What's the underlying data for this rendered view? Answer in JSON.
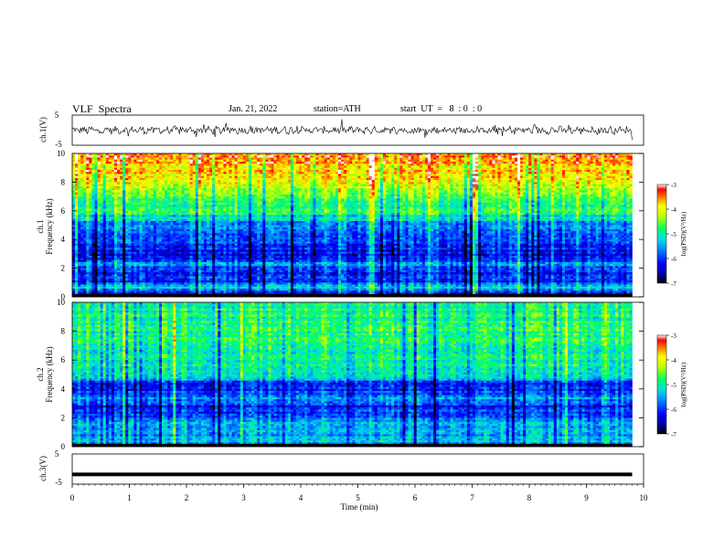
{
  "header": {
    "title": "VLF  Spectra",
    "date": "Jan. 21, 2022",
    "station": "station=ATH",
    "start_ut": "start  UT  =   8  : 0  : 0"
  },
  "chart_data": [
    {
      "type": "line",
      "name": "ch1-waveform",
      "ylabel": "ch.1(V)",
      "ylim": [
        -5,
        5
      ],
      "ytick_labels": [
        "5",
        "-5"
      ],
      "xlim": [
        0,
        10
      ],
      "color": "#000000",
      "level": 0
    },
    {
      "type": "heatmap",
      "name": "ch1-spectrogram",
      "ylabel": "ch.1\nFrequency (kHz)",
      "ylabel_lines": [
        "ch.1",
        "Frequency (kHz)"
      ],
      "ylim": [
        0,
        10
      ],
      "ytick_labels": [
        "0",
        "2",
        "4",
        "6",
        "8",
        "10"
      ],
      "xlim": [
        0,
        9.8
      ],
      "colorbar": {
        "label": "log(PSD)(V²/Hz)",
        "range": [
          -7,
          -3
        ],
        "tick_labels": [
          "-3",
          "-4",
          "-5",
          "-6",
          "-7"
        ]
      },
      "profile_kHz": [
        [
          0,
          -6.6
        ],
        [
          0.3,
          -6.2
        ],
        [
          0.7,
          -5.2
        ],
        [
          1.0,
          -6.0
        ],
        [
          1.5,
          -6.1
        ],
        [
          2.0,
          -5.9
        ],
        [
          2.3,
          -5.5
        ],
        [
          2.6,
          -6.2
        ],
        [
          3.5,
          -6.1
        ],
        [
          4.2,
          -5.9
        ],
        [
          5.0,
          -5.6
        ],
        [
          5.5,
          -5.2
        ],
        [
          6.0,
          -4.8
        ],
        [
          7.0,
          -4.5
        ],
        [
          7.5,
          -4.3
        ],
        [
          8.5,
          -3.9
        ],
        [
          10.0,
          -3.4
        ]
      ]
    },
    {
      "type": "heatmap",
      "name": "ch2-spectrogram",
      "ylabel": "ch.2\nFrequency (kHz)",
      "ylabel_lines": [
        "ch.2",
        "Frequency (kHz)"
      ],
      "ylim": [
        0,
        10
      ],
      "ytick_labels": [
        "0",
        "2",
        "4",
        "6",
        "8",
        "10"
      ],
      "xlim": [
        0,
        9.8
      ],
      "colorbar": {
        "label": "log(PSD)(V²/Hz)",
        "range": [
          -7,
          -3
        ],
        "tick_labels": [
          "-3",
          "-4",
          "-5",
          "-6",
          "-7"
        ]
      },
      "profile_kHz": [
        [
          0,
          -6.0
        ],
        [
          0.4,
          -5.3
        ],
        [
          0.8,
          -5.6
        ],
        [
          1.2,
          -5.3
        ],
        [
          1.8,
          -5.5
        ],
        [
          2.2,
          -5.9
        ],
        [
          2.8,
          -6.1
        ],
        [
          3.3,
          -5.6
        ],
        [
          3.8,
          -5.9
        ],
        [
          4.3,
          -6.2
        ],
        [
          4.8,
          -5.3
        ],
        [
          5.5,
          -5.0
        ],
        [
          6.5,
          -4.9
        ],
        [
          8.0,
          -4.8
        ],
        [
          10.0,
          -4.8
        ]
      ]
    },
    {
      "type": "line",
      "name": "ch3-waveform",
      "ylabel": "ch.3(V)",
      "ylim": [
        -5,
        5
      ],
      "ytick_labels": [
        "5",
        "-5"
      ],
      "xlim": [
        0,
        10
      ],
      "color": "#000000",
      "level": -1.8,
      "xlabel": "Time  (min)",
      "xtick_labels": [
        "0",
        "1",
        "2",
        "3",
        "4",
        "5",
        "6",
        "7",
        "8",
        "9",
        "10"
      ]
    }
  ]
}
